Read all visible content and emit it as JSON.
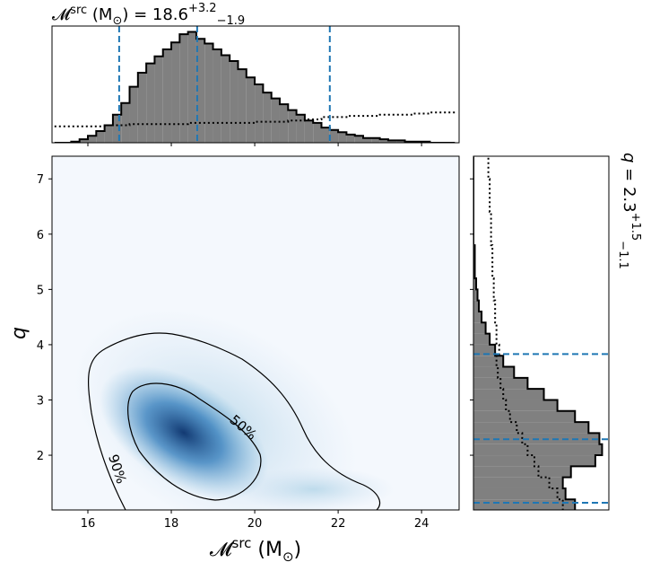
{
  "chart_data": [
    {
      "type": "histogram",
      "orientation": "vertical",
      "title": {
        "symbol": "𝓜",
        "sup": "src",
        "unit": " (M",
        "sub": "⊙",
        "rest": ") = 18.6",
        "plus": "+3.2",
        "minus": "−1.9"
      },
      "bins": [
        15.2,
        15.4,
        15.6,
        15.8,
        16.0,
        16.2,
        16.4,
        16.6,
        16.8,
        17.0,
        17.2,
        17.4,
        17.6,
        17.8,
        18.0,
        18.2,
        18.4,
        18.6,
        18.8,
        19.0,
        19.2,
        19.4,
        19.6,
        19.8,
        20.0,
        20.2,
        20.4,
        20.6,
        20.8,
        21.0,
        21.2,
        21.4,
        21.6,
        21.8,
        22.0,
        22.2,
        22.4,
        22.6,
        22.8,
        23.0,
        23.2,
        23.4,
        23.6,
        23.8,
        24.0,
        24.2,
        24.4,
        24.6,
        24.8
      ],
      "values": [
        0,
        0,
        1,
        3,
        6,
        10,
        15,
        24,
        34,
        48,
        60,
        68,
        74,
        80,
        86,
        93,
        95,
        89,
        85,
        80,
        75,
        70,
        63,
        56,
        50,
        43,
        38,
        33,
        28,
        24,
        19,
        17,
        13,
        11,
        9,
        7,
        6,
        4,
        4,
        3,
        2,
        2,
        1,
        1,
        1,
        0,
        0,
        0
      ],
      "dotted_values": [
        14,
        14,
        14,
        14,
        14,
        14,
        15,
        15,
        15,
        16,
        16,
        16,
        16,
        16,
        16,
        16,
        17,
        17,
        17,
        17,
        17,
        17,
        17,
        17,
        18,
        18,
        18,
        18,
        19,
        19,
        20,
        20,
        22,
        22,
        22,
        23,
        23,
        23,
        23,
        24,
        24,
        24,
        24,
        25,
        25,
        26,
        26,
        26
      ],
      "color": "#808080",
      "quantiles": [
        16.75,
        18.62,
        21.8
      ],
      "quantile_color": "#1f77b4",
      "xlim": [
        15.14,
        24.9
      ],
      "ylim": [
        0,
        100
      ],
      "xticks": [
        16,
        18,
        20,
        22,
        24
      ]
    },
    {
      "type": "density",
      "xlabel": {
        "symbol": "𝓜",
        "sup": "src",
        "unit": " (M",
        "sub": "⊙",
        "close": ")"
      },
      "ylabel": "q",
      "contour_labels": [
        "50%",
        "90%"
      ],
      "xlim": [
        15.14,
        24.9
      ],
      "ylim": [
        1.01,
        7.41
      ],
      "xticks": [
        16,
        18,
        20,
        22,
        24
      ],
      "yticks": [
        2,
        3,
        4,
        5,
        6,
        7
      ]
    },
    {
      "type": "histogram",
      "orientation": "horizontal",
      "title": {
        "symbol": "q",
        "rest": " = 2.3",
        "plus": "+1.5",
        "minus": "−1.1"
      },
      "bins": [
        1.0,
        1.2,
        1.4,
        1.6,
        1.8,
        2.0,
        2.2,
        2.4,
        2.6,
        2.8,
        3.0,
        3.2,
        3.4,
        3.6,
        3.8,
        4.0,
        4.2,
        4.4,
        4.6,
        4.8,
        5.0,
        5.2,
        5.4,
        5.6,
        5.8,
        6.0,
        6.2,
        6.4,
        6.6,
        6.8,
        7.0,
        7.2,
        7.4
      ],
      "values": [
        75,
        68,
        66,
        72,
        90,
        95,
        93,
        85,
        75,
        62,
        52,
        40,
        30,
        22,
        16,
        12,
        9,
        6,
        4,
        3,
        2,
        1,
        1,
        1,
        0,
        0,
        0,
        0,
        0,
        0,
        0,
        0
      ],
      "dotted_values": [
        66,
        62,
        56,
        48,
        45,
        40,
        36,
        32,
        27,
        24,
        22,
        20,
        18,
        17,
        19,
        17,
        17,
        16,
        16,
        15,
        15,
        14,
        14,
        14,
        13,
        13,
        13,
        12,
        12,
        12,
        11,
        11
      ],
      "color": "#808080",
      "quantiles": [
        3.83,
        2.29,
        1.14
      ],
      "quantile_color": "#1f77b4",
      "xlim": [
        0,
        100
      ],
      "ylim": [
        1.01,
        7.41
      ],
      "yticks": [
        2,
        3,
        4,
        5,
        6,
        7
      ]
    }
  ]
}
